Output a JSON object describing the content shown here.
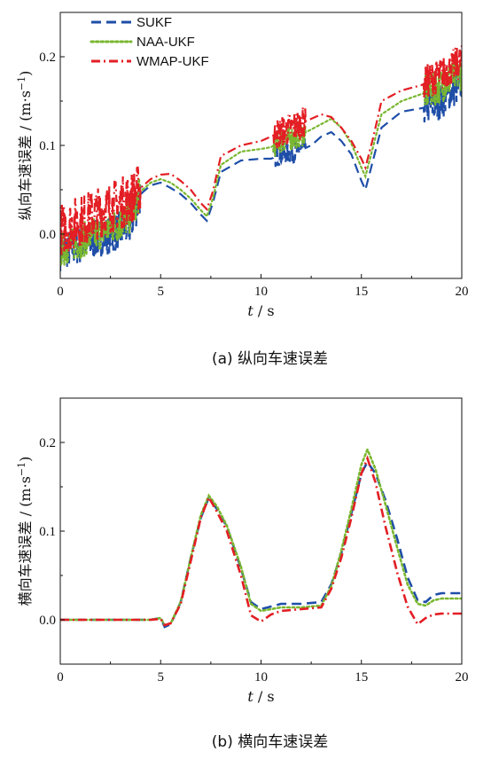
{
  "chart_data": [
    {
      "type": "line",
      "caption": "(a)  纵向车速误差",
      "xlabel_italic": "t",
      "xlabel_unit": " / s",
      "ylabel": "纵向车速误差 / (m·s",
      "ylabel_sup": "−1",
      "ylabel_close": ")",
      "xlim": [
        0,
        20
      ],
      "ylim": [
        -0.05,
        0.25
      ],
      "xticks": [
        0,
        5,
        10,
        15,
        20
      ],
      "yticks": [
        0.0,
        0.1,
        0.2
      ],
      "ytick_labels": [
        "0.0",
        "0.1",
        "0.2"
      ],
      "legend_position": "top-left",
      "legend": [
        "SUKF",
        "NAA-UKF",
        "WMAP-UKF"
      ],
      "series": [
        {
          "name": "SUKF",
          "color": "#1f4ea8",
          "dash": "long-dash",
          "x": [
            0,
            1,
            2,
            3,
            3.5,
            4,
            4.5,
            5,
            5.5,
            6,
            6.5,
            7,
            7.3,
            7.6,
            8,
            9,
            10,
            10.5,
            11,
            11.5,
            12,
            12.5,
            13,
            13.5,
            14,
            14.5,
            15,
            15.2,
            15.6,
            16,
            17,
            18,
            18.5,
            19,
            19.5,
            20
          ],
          "y": [
            -0.02,
            -0.012,
            -0.004,
            0.004,
            0.01,
            0.045,
            0.055,
            0.058,
            0.052,
            0.045,
            0.035,
            0.022,
            0.015,
            0.035,
            0.07,
            0.083,
            0.085,
            0.085,
            0.09,
            0.092,
            0.095,
            0.1,
            0.11,
            0.115,
            0.105,
            0.09,
            0.06,
            0.05,
            0.085,
            0.12,
            0.138,
            0.142,
            0.145,
            0.15,
            0.16,
            0.17
          ],
          "noise": [
            [
              0.0,
              4.0,
              0.022
            ],
            [
              10.6,
              12.2,
              0.012
            ],
            [
              18.1,
              20.0,
              0.02
            ]
          ]
        },
        {
          "name": "NAA-UKF",
          "color": "#7ab730",
          "dash": "dotted",
          "x": [
            0,
            1,
            2,
            3,
            3.5,
            4,
            4.5,
            5,
            5.5,
            6,
            6.5,
            7,
            7.3,
            7.6,
            8,
            9,
            10,
            10.5,
            11,
            11.5,
            12,
            12.5,
            13,
            13.5,
            14,
            14.5,
            15,
            15.2,
            15.6,
            16,
            17,
            18,
            18.5,
            19,
            19.5,
            20
          ],
          "y": [
            -0.018,
            -0.008,
            0.002,
            0.012,
            0.02,
            0.048,
            0.058,
            0.062,
            0.058,
            0.05,
            0.04,
            0.027,
            0.02,
            0.04,
            0.078,
            0.093,
            0.096,
            0.098,
            0.105,
            0.108,
            0.112,
            0.118,
            0.124,
            0.13,
            0.12,
            0.102,
            0.075,
            0.065,
            0.1,
            0.135,
            0.15,
            0.158,
            0.162,
            0.168,
            0.175,
            0.182
          ],
          "noise": [
            [
              0.0,
              4.0,
              0.02
            ],
            [
              10.6,
              12.2,
              0.014
            ],
            [
              18.1,
              20.0,
              0.02
            ]
          ]
        },
        {
          "name": "WMAP-UKF",
          "color": "#e31e24",
          "dash": "dash-dot",
          "x": [
            0,
            1,
            2,
            3,
            3.5,
            4,
            4.5,
            5,
            5.5,
            6,
            6.5,
            7,
            7.3,
            7.6,
            8,
            9,
            10,
            10.5,
            11,
            11.5,
            12,
            12.5,
            13,
            13.5,
            14,
            14.5,
            15,
            15.2,
            15.6,
            16,
            17,
            18,
            18.5,
            19,
            19.5,
            20
          ],
          "y": [
            0.005,
            0.015,
            0.025,
            0.035,
            0.04,
            0.052,
            0.062,
            0.067,
            0.068,
            0.06,
            0.05,
            0.035,
            0.028,
            0.048,
            0.088,
            0.1,
            0.105,
            0.11,
            0.115,
            0.12,
            0.125,
            0.13,
            0.135,
            0.132,
            0.12,
            0.105,
            0.085,
            0.075,
            0.11,
            0.15,
            0.162,
            0.168,
            0.175,
            0.18,
            0.188,
            0.195
          ],
          "noise": [
            [
              0.0,
              4.0,
              0.03
            ],
            [
              10.6,
              12.2,
              0.018
            ],
            [
              18.1,
              20.0,
              0.02
            ]
          ]
        }
      ]
    },
    {
      "type": "line",
      "caption": "(b)  横向车速误差",
      "xlabel_italic": "t",
      "xlabel_unit": " / s",
      "ylabel": "横向车速误差 / (m·s",
      "ylabel_sup": "−1",
      "ylabel_close": ")",
      "xlim": [
        0,
        20
      ],
      "ylim": [
        -0.05,
        0.25
      ],
      "xticks": [
        0,
        5,
        10,
        15,
        20
      ],
      "yticks": [
        0.0,
        0.1,
        0.2
      ],
      "ytick_labels": [
        "0.0",
        "0.1",
        "0.2"
      ],
      "series": [
        {
          "name": "SUKF",
          "color": "#1f4ea8",
          "dash": "long-dash",
          "x": [
            0,
            4.5,
            5,
            5.2,
            5.5,
            6,
            6.5,
            7,
            7.4,
            7.8,
            8.3,
            9,
            9.5,
            10,
            10.5,
            11,
            12,
            13,
            13.5,
            14,
            14.5,
            15,
            15.3,
            15.7,
            16.2,
            16.8,
            17.3,
            17.8,
            18.2,
            18.6,
            19,
            20
          ],
          "y": [
            0,
            0,
            0.002,
            -0.008,
            -0.005,
            0.02,
            0.07,
            0.115,
            0.138,
            0.125,
            0.105,
            0.058,
            0.02,
            0.012,
            0.015,
            0.018,
            0.018,
            0.02,
            0.04,
            0.075,
            0.12,
            0.165,
            0.178,
            0.165,
            0.135,
            0.09,
            0.048,
            0.022,
            0.02,
            0.028,
            0.03,
            0.03
          ]
        },
        {
          "name": "NAA-UKF",
          "color": "#7ab730",
          "dash": "dotted",
          "x": [
            0,
            4.5,
            5,
            5.2,
            5.5,
            6,
            6.5,
            7,
            7.4,
            7.8,
            8.3,
            9,
            9.5,
            10,
            10.5,
            11,
            12,
            13,
            13.5,
            14,
            14.5,
            15,
            15.3,
            15.7,
            16.2,
            16.8,
            17.3,
            17.8,
            18.2,
            18.6,
            19,
            20
          ],
          "y": [
            0,
            0,
            0.002,
            -0.006,
            -0.004,
            0.02,
            0.07,
            0.118,
            0.14,
            0.128,
            0.106,
            0.06,
            0.018,
            0.01,
            0.012,
            0.014,
            0.014,
            0.016,
            0.038,
            0.078,
            0.125,
            0.175,
            0.192,
            0.17,
            0.13,
            0.08,
            0.04,
            0.018,
            0.016,
            0.022,
            0.024,
            0.024
          ]
        },
        {
          "name": "WMAP-UKF",
          "color": "#e31e24",
          "dash": "dash-dot",
          "x": [
            0,
            4.5,
            5,
            5.2,
            5.5,
            6,
            6.5,
            7,
            7.4,
            7.8,
            8.3,
            9,
            9.5,
            10,
            10.5,
            11,
            12,
            13,
            13.5,
            14,
            14.5,
            15,
            15.3,
            15.7,
            16.2,
            16.8,
            17.3,
            17.8,
            18.2,
            18.6,
            19,
            20
          ],
          "y": [
            0,
            0,
            0.001,
            -0.006,
            -0.004,
            0.018,
            0.066,
            0.115,
            0.138,
            0.122,
            0.1,
            0.05,
            0.005,
            -0.002,
            0.006,
            0.01,
            0.012,
            0.014,
            0.035,
            0.07,
            0.115,
            0.165,
            0.182,
            0.155,
            0.105,
            0.052,
            0.015,
            -0.005,
            0.002,
            0.006,
            0.007,
            0.007
          ]
        }
      ]
    }
  ]
}
